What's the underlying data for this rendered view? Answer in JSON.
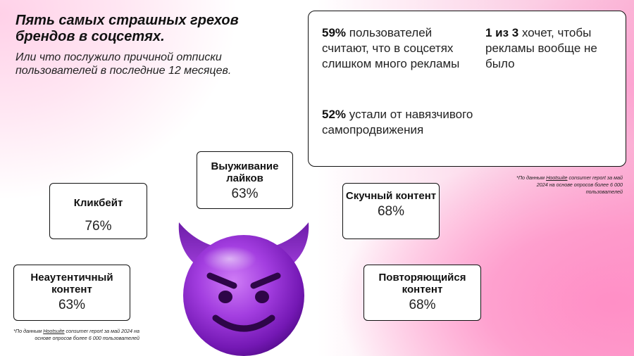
{
  "title": "Пять самых страшных грехов брендов в соцсетях.",
  "subtitle": "Или что послужило причиной отписки пользователей в последние 12 месяцев.",
  "stats": [
    {
      "value": "59%",
      "text": " пользователей считают, что в соцсетях слишком много рекламы"
    },
    {
      "value": "1 из 3",
      "text": " хочет, чтобы рекламы вообще не было"
    },
    {
      "value": "52%",
      "text": " устали от навязчивого самопродвижения"
    }
  ],
  "footnote": {
    "prefix": "*По данным ",
    "source": "Hootsuite",
    "right_rest": " consumer report за май 2024 на основе опросов более 6 000 пользователей",
    "left_rest": " consumer report за май 2024 на основе опросов более 6 000 пользователей"
  },
  "sins": [
    {
      "label": "Выуживание лайков",
      "percent": "63%"
    },
    {
      "label": "Кликбейт",
      "percent": "76%"
    },
    {
      "label": "Скучный контент",
      "percent": "68%"
    },
    {
      "label": "Неаутентичный контент",
      "percent": "63%"
    },
    {
      "label": "Повторяющийся контент",
      "percent": "68%"
    }
  ],
  "colors": {
    "accent_pink": "#ff8fc6",
    "devil_purple": "#9b2fd1",
    "devil_dark": "#4a0f6e",
    "text": "#111111"
  },
  "icons": {
    "emoji": "smiling-devil-icon"
  }
}
